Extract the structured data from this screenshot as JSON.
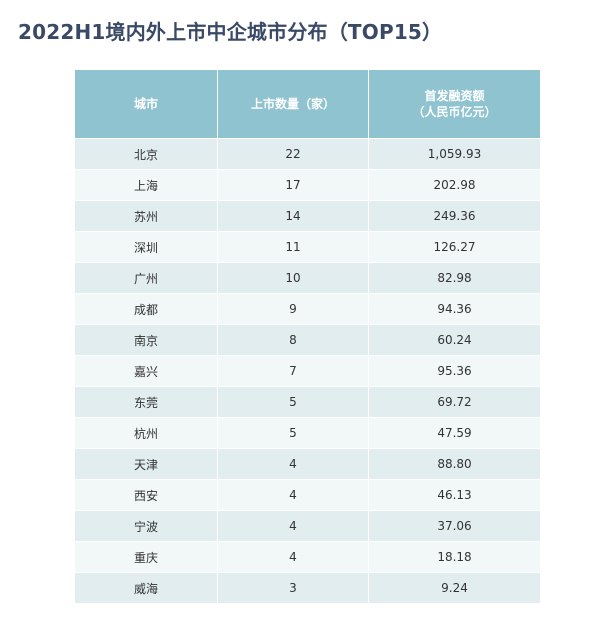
{
  "title": "2022H1境内外上市中企城市分布（TOP15）",
  "header": {
    "city": "城市",
    "count": "上市数量（家）",
    "financing_line1": "首发融资额",
    "financing_line2": "（人民币亿元）"
  },
  "colors": {
    "header_bg": "#8ec3cf",
    "row_dark": "#e2edf0",
    "row_light": "#f2f7f8",
    "title": "#3a4a66"
  },
  "rows": [
    {
      "city": "北京",
      "count": "22",
      "financing": "1,059.93"
    },
    {
      "city": "上海",
      "count": "17",
      "financing": "202.98"
    },
    {
      "city": "苏州",
      "count": "14",
      "financing": "249.36"
    },
    {
      "city": "深圳",
      "count": "11",
      "financing": "126.27"
    },
    {
      "city": "广州",
      "count": "10",
      "financing": "82.98"
    },
    {
      "city": "成都",
      "count": "9",
      "financing": "94.36"
    },
    {
      "city": "南京",
      "count": "8",
      "financing": "60.24"
    },
    {
      "city": "嘉兴",
      "count": "7",
      "financing": "95.36"
    },
    {
      "city": "东莞",
      "count": "5",
      "financing": "69.72"
    },
    {
      "city": "杭州",
      "count": "5",
      "financing": "47.59"
    },
    {
      "city": "天津",
      "count": "4",
      "financing": "88.80"
    },
    {
      "city": "西安",
      "count": "4",
      "financing": "46.13"
    },
    {
      "city": "宁波",
      "count": "4",
      "financing": "37.06"
    },
    {
      "city": "重庆",
      "count": "4",
      "financing": "18.18"
    },
    {
      "city": "威海",
      "count": "3",
      "financing": "9.24"
    }
  ]
}
